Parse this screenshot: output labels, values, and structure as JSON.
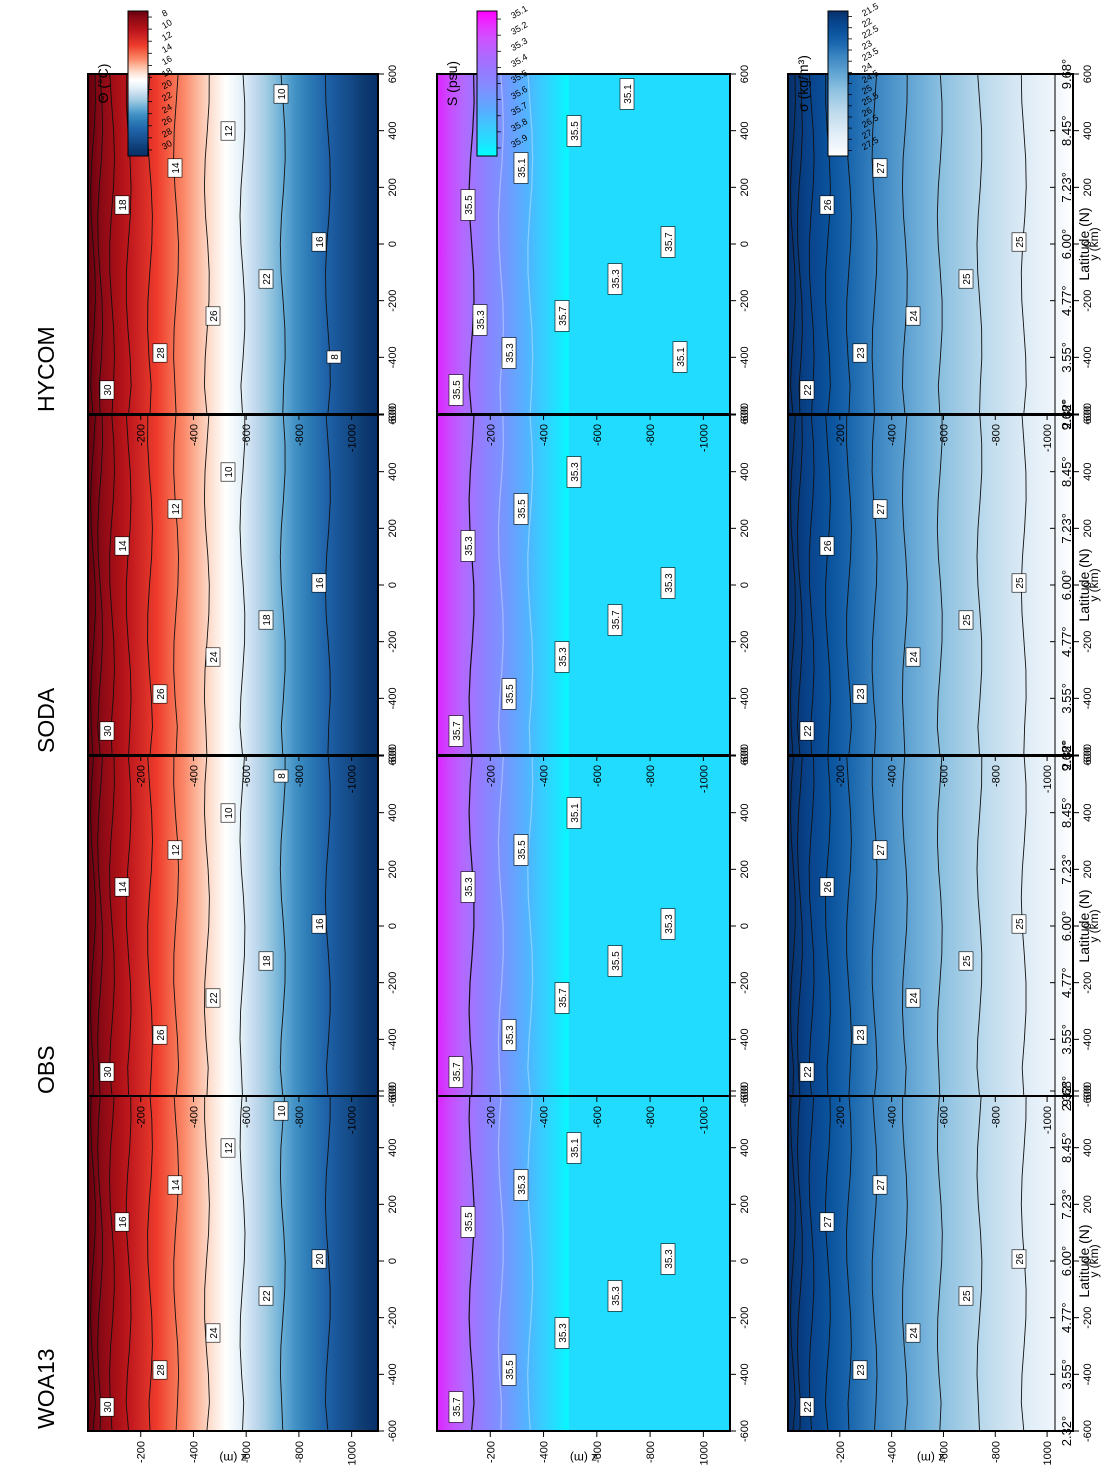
{
  "figure": {
    "axis_labels": {
      "y": "z (m)",
      "x": "y (km)",
      "lat": "Latitude (N)"
    },
    "x_ticks": [
      -600,
      -400,
      -200,
      0,
      200,
      400,
      600
    ],
    "lat_ticks": [
      "2.32°",
      "3.55°",
      "4.77°",
      "6.00°",
      "7.23°",
      "8.45°",
      "9.68°"
    ],
    "z_ticks": [
      -200,
      -400,
      -600,
      -800,
      -1000
    ],
    "columns": [
      "WOA13",
      "OBS",
      "SODA",
      "HYCOM"
    ]
  },
  "colorbars": [
    {
      "label": "Θ (°C)",
      "ticks": [
        "30",
        "28",
        "26",
        "24",
        "22",
        "20",
        "18",
        "16",
        "14",
        "12",
        "10",
        "8"
      ],
      "colors": [
        "#67000d",
        "#8b0a16",
        "#a50f15",
        "#c0181d",
        "#d42b26",
        "#ef3b2c",
        "#f4664a",
        "#fb8a6a",
        "#fcbba1",
        "#fde3d6",
        "#ffffff",
        "#e6f2f8",
        "#c6dbef",
        "#9ecae1",
        "#6baed6",
        "#4292c6",
        "#2c7bb6",
        "#2166ac",
        "#1a579a",
        "#144a87",
        "#0d3a70",
        "#08306b"
      ]
    },
    {
      "label": "S (psu)",
      "ticks": [
        "35.9",
        "35.8",
        "35.7",
        "35.6",
        "35.5",
        "35.4",
        "35.3",
        "35.2",
        "35.1"
      ],
      "colors": [
        "#ff00ff",
        "#e633ff",
        "#cc55ff",
        "#b066ff",
        "#9977ff",
        "#8888ff",
        "#6f9bff",
        "#55b0ff",
        "#3ccaff",
        "#22e0ff",
        "#00ffff"
      ]
    },
    {
      "label": "σ (kg/m³)",
      "ticks": [
        "27.5",
        "27",
        "26.5",
        "26",
        "25.5",
        "25",
        "24.5",
        "24",
        "23.5",
        "23",
        "22.5",
        "22",
        "21.5"
      ],
      "colors": [
        "#08306b",
        "#08448c",
        "#0b559f",
        "#1e6ab0",
        "#3a84c1",
        "#5399cc",
        "#6eadd8",
        "#8bc0e0",
        "#a4cde6",
        "#bcdaec",
        "#cfe3f1",
        "#e0edf7",
        "#eef5fb",
        "#ffffff"
      ]
    }
  ],
  "chart_data": [
    {
      "type": "heatmap",
      "variable": "Θ (°C)",
      "column": "WOA13",
      "contour_labels": [
        "30",
        "28",
        "24",
        "22",
        "20",
        "16",
        "14",
        "12",
        "10"
      ],
      "x_range": [
        -600,
        600
      ],
      "z_range": [
        0,
        -1100
      ]
    },
    {
      "type": "heatmap",
      "variable": "Θ (°C)",
      "column": "OBS",
      "contour_labels": [
        "30",
        "26",
        "22",
        "18",
        "16",
        "14",
        "12",
        "10",
        "8"
      ],
      "x_range": [
        -600,
        600
      ],
      "z_range": [
        0,
        -1100
      ]
    },
    {
      "type": "heatmap",
      "variable": "Θ (°C)",
      "column": "SODA",
      "contour_labels": [
        "30",
        "26",
        "24",
        "18",
        "16",
        "14",
        "12",
        "10"
      ],
      "x_range": [
        -600,
        600
      ],
      "z_range": [
        0,
        -1100
      ]
    },
    {
      "type": "heatmap",
      "variable": "Θ (°C)",
      "column": "HYCOM",
      "contour_labels": [
        "30",
        "28",
        "26",
        "22",
        "16",
        "18",
        "14",
        "12",
        "10",
        "8"
      ],
      "x_range": [
        -600,
        600
      ],
      "z_range": [
        0,
        -1100
      ]
    },
    {
      "type": "heatmap",
      "variable": "S (psu)",
      "column": "WOA13",
      "contour_labels": [
        "35.7",
        "35.5",
        "35.3",
        "35.3",
        "35.3",
        "35.5",
        "35.3",
        "35.1"
      ],
      "x_range": [
        -600,
        600
      ],
      "z_range": [
        0,
        -1100
      ]
    },
    {
      "type": "heatmap",
      "variable": "S (psu)",
      "column": "OBS",
      "contour_labels": [
        "35.7",
        "35.3",
        "35.7",
        "35.5",
        "35.3",
        "35.3",
        "35.5",
        "35.1"
      ],
      "x_range": [
        -600,
        600
      ],
      "z_range": [
        0,
        -1100
      ]
    },
    {
      "type": "heatmap",
      "variable": "S (psu)",
      "column": "SODA",
      "contour_labels": [
        "35.7",
        "35.5",
        "35.3",
        "35.7",
        "35.3",
        "35.3",
        "35.5",
        "35.3"
      ],
      "x_range": [
        -600,
        600
      ],
      "z_range": [
        0,
        -1100
      ]
    },
    {
      "type": "heatmap",
      "variable": "S (psu)",
      "column": "HYCOM",
      "contour_labels": [
        "35.5",
        "35.3",
        "35.7",
        "35.3",
        "35.7",
        "35.5",
        "35.1",
        "35.5",
        "35.1",
        "35.1",
        "35.3"
      ],
      "x_range": [
        -600,
        600
      ],
      "z_range": [
        0,
        -1100
      ]
    },
    {
      "type": "heatmap",
      "variable": "σ (kg/m³)",
      "column": "WOA13",
      "contour_labels": [
        "22",
        "23",
        "24",
        "25",
        "26",
        "27",
        "27"
      ],
      "x_range": [
        -600,
        600
      ],
      "z_range": [
        0,
        -1100
      ]
    },
    {
      "type": "heatmap",
      "variable": "σ (kg/m³)",
      "column": "OBS",
      "contour_labels": [
        "22",
        "23",
        "24",
        "25",
        "25",
        "26",
        "27"
      ],
      "x_range": [
        -600,
        600
      ],
      "z_range": [
        0,
        -1100
      ]
    },
    {
      "type": "heatmap",
      "variable": "σ (kg/m³)",
      "column": "SODA",
      "contour_labels": [
        "22",
        "23",
        "24",
        "25",
        "25",
        "26",
        "27"
      ],
      "x_range": [
        -600,
        600
      ],
      "z_range": [
        0,
        -1100
      ]
    },
    {
      "type": "heatmap",
      "variable": "σ (kg/m³)",
      "column": "HYCOM",
      "contour_labels": [
        "22",
        "23",
        "24",
        "25",
        "25",
        "26",
        "27"
      ],
      "x_range": [
        -600,
        600
      ],
      "z_range": [
        0,
        -1100
      ]
    }
  ]
}
